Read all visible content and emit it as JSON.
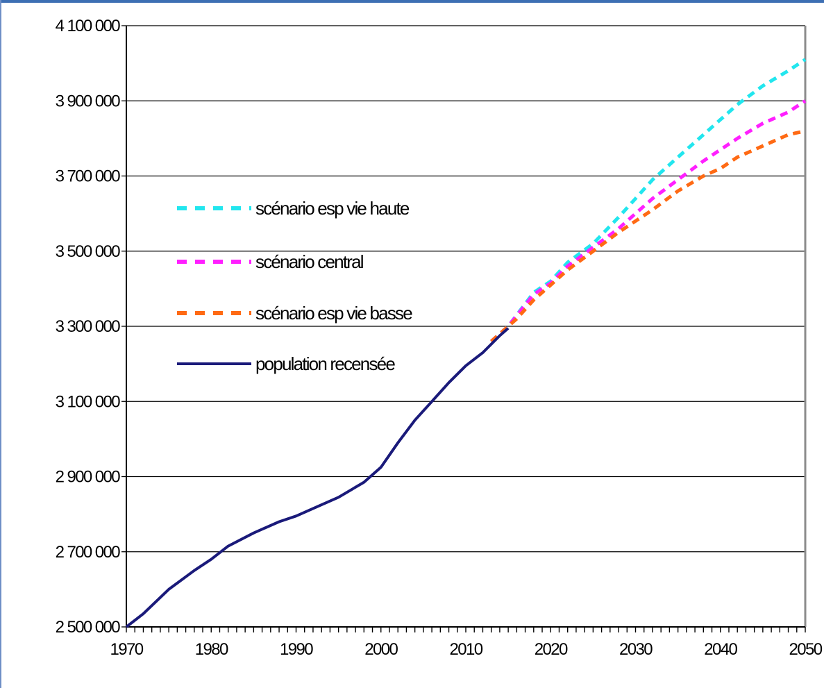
{
  "chart_data": {
    "type": "line",
    "x_ticks": [
      "1970",
      "1980",
      "1990",
      "2000",
      "2010",
      "2020",
      "2030",
      "2040",
      "2050"
    ],
    "y_ticks": [
      "2 500 000",
      "2 700 000",
      "2 900 000",
      "3 100 000",
      "3 300 000",
      "3 500 000",
      "3 700 000",
      "3 900 000",
      "4 100 000"
    ],
    "xlim": [
      1970,
      2050
    ],
    "ylim": [
      2500000,
      4100000
    ],
    "grid": "horizontal",
    "legend_position": "left-middle",
    "series": [
      {
        "name": "scénario esp vie haute",
        "color": "#22e6ee",
        "style": "dashed",
        "x": [
          2013,
          2015,
          2018,
          2020,
          2022,
          2025,
          2028,
          2030,
          2032,
          2035,
          2038,
          2040,
          2042,
          2045,
          2048,
          2050
        ],
        "y": [
          3260000,
          3300000,
          3390000,
          3420000,
          3470000,
          3520000,
          3590000,
          3640000,
          3690000,
          3750000,
          3810000,
          3850000,
          3890000,
          3940000,
          3980000,
          4010000
        ]
      },
      {
        "name": "scénario central",
        "color": "#ff1fff",
        "style": "dashed",
        "x": [
          2013,
          2015,
          2018,
          2020,
          2022,
          2025,
          2028,
          2030,
          2032,
          2035,
          2038,
          2040,
          2042,
          2045,
          2048,
          2050
        ],
        "y": [
          3260000,
          3300000,
          3385000,
          3415000,
          3460000,
          3510000,
          3560000,
          3600000,
          3640000,
          3690000,
          3740000,
          3770000,
          3800000,
          3840000,
          3870000,
          3900000
        ]
      },
      {
        "name": "scénario esp vie basse",
        "color": "#ff6a14",
        "style": "dashed",
        "x": [
          2013,
          2015,
          2016,
          2018,
          2020,
          2022,
          2025,
          2028,
          2030,
          2032,
          2035,
          2038,
          2040,
          2042,
          2045,
          2048,
          2050
        ],
        "y": [
          3260000,
          3300000,
          3320000,
          3370000,
          3410000,
          3450000,
          3500000,
          3550000,
          3580000,
          3610000,
          3660000,
          3700000,
          3720000,
          3750000,
          3780000,
          3810000,
          3820000
        ]
      },
      {
        "name": "population recensée",
        "color": "#1a1a7a",
        "style": "solid",
        "x": [
          1970,
          1972,
          1975,
          1978,
          1980,
          1982,
          1985,
          1988,
          1990,
          1993,
          1995,
          1998,
          2000,
          2002,
          2004,
          2006,
          2008,
          2010,
          2012,
          2014,
          2015
        ],
        "y": [
          2500000,
          2535000,
          2600000,
          2650000,
          2680000,
          2715000,
          2750000,
          2780000,
          2795000,
          2825000,
          2845000,
          2885000,
          2925000,
          2990000,
          3050000,
          3100000,
          3150000,
          3195000,
          3230000,
          3275000,
          3295000
        ]
      }
    ]
  }
}
